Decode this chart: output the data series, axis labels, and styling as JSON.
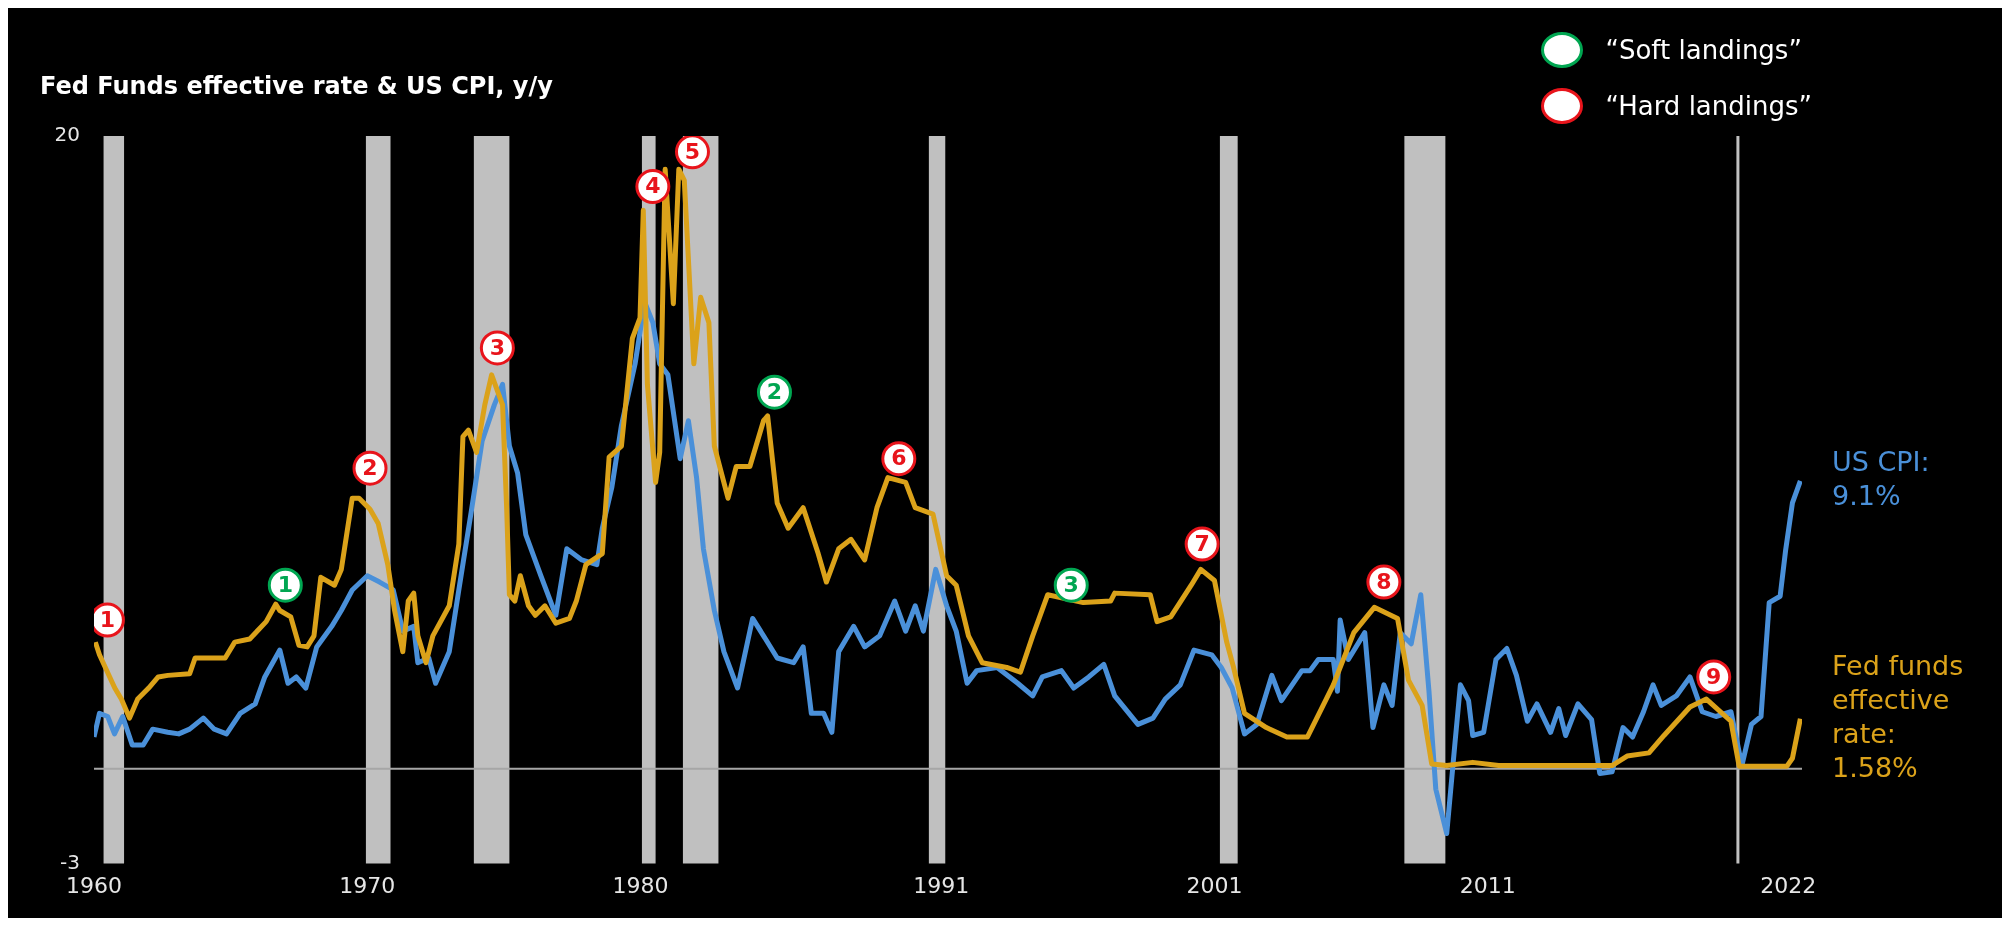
{
  "chart_data": {
    "type": "line",
    "title": "Fed Funds effective rate & US CPI, y/y",
    "xlim": [
      1960,
      2022.5
    ],
    "xticks": [
      1960,
      1970,
      1980,
      1991,
      2001,
      2011,
      2022
    ],
    "ylim": [
      -3,
      20
    ],
    "yticks": [
      -3,
      20
    ],
    "legend": "top right",
    "bands": [
      {
        "axis": "x",
        "from": 1960.35,
        "to": 1961.1,
        "color": "#c0c0c0"
      },
      {
        "axis": "x",
        "from": 1969.95,
        "to": 1970.85,
        "color": "#c0c0c0"
      },
      {
        "axis": "x",
        "from": 1973.9,
        "to": 1975.2,
        "color": "#c0c0c0"
      },
      {
        "axis": "x",
        "from": 1980.05,
        "to": 1980.55,
        "color": "#c0c0c0"
      },
      {
        "axis": "x",
        "from": 1981.55,
        "to": 1982.85,
        "color": "#c0c0c0"
      },
      {
        "axis": "x",
        "from": 1990.55,
        "to": 1991.15,
        "color": "#c0c0c0"
      },
      {
        "axis": "x",
        "from": 2001.2,
        "to": 2001.85,
        "color": "#c0c0c0"
      },
      {
        "axis": "x",
        "from": 2007.95,
        "to": 2009.45,
        "color": "#c0c0c0"
      },
      {
        "axis": "x",
        "from": 2020.1,
        "to": 2020.2,
        "color": "#c0c0c0"
      }
    ],
    "ref_lines": [
      {
        "axis": "y",
        "value": 0,
        "color": "#a6a6a6"
      }
    ],
    "series": [
      {
        "name": "Fed funds effective rate: 1.58%",
        "color": "#dba21a",
        "marker": "none",
        "x": [
          1960.05,
          1960.2,
          1960.76,
          1961.0,
          1961.3,
          1961.6,
          1962.0,
          1962.35,
          1962.7,
          1963.5,
          1963.7,
          1964.8,
          1965.15,
          1965.7,
          1966.3,
          1966.65,
          1966.8,
          1967.2,
          1967.5,
          1967.8,
          1968.05,
          1968.3,
          1968.8,
          1969.05,
          1969.45,
          1969.7,
          1970.1,
          1970.4,
          1970.75,
          1971.0,
          1971.3,
          1971.5,
          1971.7,
          1971.85,
          1972.15,
          1972.4,
          1973.0,
          1973.35,
          1973.5,
          1973.7,
          1974.0,
          1974.3,
          1974.55,
          1974.95,
          1975.1,
          1975.2,
          1975.4,
          1975.6,
          1975.9,
          1976.15,
          1976.5,
          1976.9,
          1977.4,
          1977.65,
          1978.0,
          1978.6,
          1978.85,
          1979.3,
          1979.7,
          1979.98,
          1980.1,
          1980.25,
          1980.55,
          1980.7,
          1980.9,
          1981.2,
          1981.4,
          1981.6,
          1981.95,
          1982.2,
          1982.5,
          1982.7,
          1983.2,
          1983.5,
          1984.0,
          1984.5,
          1984.65,
          1985.0,
          1985.4,
          1985.95,
          1986.5,
          1986.8,
          1987.25,
          1987.7,
          1988.2,
          1988.65,
          1989.05,
          1989.7,
          1990.05,
          1990.7,
          1991.2,
          1991.55,
          1992.0,
          1992.5,
          1993.4,
          1993.9,
          1994.35,
          1994.9,
          1996.2,
          1997.2,
          1997.35,
          1998.65,
          1998.9,
          1999.4,
          2000.15,
          2000.5,
          2001.0,
          2001.45,
          2001.7,
          2002.1,
          2002.9,
          2003.65,
          2004.4,
          2005.35,
          2006.1,
          2006.85,
          2007.7,
          2008.1,
          2008.6,
          2008.95,
          2009.5,
          2010.45,
          2011.4,
          2013.65,
          2015.55,
          2016.1,
          2016.9,
          2017.45,
          2018.4,
          2019.0,
          2019.9,
          2020.2,
          2021.95,
          2022.15,
          2022.44
        ],
        "values": [
          4.0,
          3.6,
          2.55,
          2.2,
          1.6,
          2.2,
          2.55,
          2.9,
          2.95,
          3.0,
          3.5,
          3.5,
          4.0,
          4.1,
          4.65,
          5.2,
          5.0,
          4.8,
          3.9,
          3.85,
          4.2,
          6.05,
          5.8,
          6.3,
          8.55,
          8.55,
          8.2,
          7.75,
          6.45,
          5.0,
          3.7,
          5.3,
          5.55,
          4.2,
          3.35,
          4.2,
          5.15,
          7.1,
          10.5,
          10.7,
          10.0,
          11.5,
          12.45,
          11.5,
          8.25,
          5.5,
          5.3,
          6.1,
          5.15,
          4.85,
          5.15,
          4.6,
          4.75,
          5.3,
          6.45,
          6.8,
          9.85,
          10.2,
          13.6,
          14.25,
          17.65,
          12.15,
          9.05,
          10.0,
          18.95,
          14.7,
          18.95,
          18.6,
          12.8,
          14.9,
          14.1,
          10.2,
          8.55,
          9.55,
          9.55,
          11.0,
          11.15,
          8.4,
          7.6,
          8.25,
          6.8,
          5.9,
          6.95,
          7.25,
          6.6,
          8.25,
          9.2,
          9.05,
          8.25,
          8.05,
          6.1,
          5.8,
          4.2,
          3.35,
          3.2,
          3.05,
          4.2,
          5.5,
          5.25,
          5.3,
          5.55,
          5.5,
          4.65,
          4.8,
          5.8,
          6.3,
          5.95,
          4.0,
          3.2,
          1.75,
          1.3,
          1.0,
          1.0,
          2.65,
          4.3,
          5.1,
          4.75,
          2.8,
          2.0,
          0.15,
          0.1,
          0.2,
          0.1,
          0.1,
          0.1,
          0.4,
          0.5,
          1.05,
          1.95,
          2.2,
          1.5,
          0.08,
          0.08,
          0.33,
          1.58
        ]
      },
      {
        "name": "US CPI: 9.1%",
        "color": "#4a90d9",
        "marker": "none",
        "x": [
          1960.0,
          1960.2,
          1960.5,
          1960.75,
          1961.05,
          1961.4,
          1961.8,
          1962.15,
          1962.7,
          1963.1,
          1963.5,
          1964.0,
          1964.4,
          1964.85,
          1965.35,
          1965.9,
          1966.25,
          1966.8,
          1967.1,
          1967.4,
          1967.75,
          1968.15,
          1968.7,
          1969.05,
          1969.45,
          1970.0,
          1970.45,
          1970.95,
          1971.3,
          1971.7,
          1971.85,
          1972.25,
          1972.5,
          1973.0,
          1973.35,
          1973.8,
          1974.2,
          1974.65,
          1974.95,
          1975.2,
          1975.5,
          1975.8,
          1976.35,
          1976.9,
          1977.3,
          1977.85,
          1978.4,
          1978.6,
          1978.95,
          1979.3,
          1979.8,
          1980.15,
          1980.45,
          1980.7,
          1981.0,
          1981.45,
          1981.75,
          1982.05,
          1982.3,
          1982.7,
          1983.05,
          1983.55,
          1984.1,
          1984.5,
          1985.0,
          1985.6,
          1985.95,
          1986.25,
          1986.7,
          1987.0,
          1987.25,
          1987.8,
          1988.2,
          1988.75,
          1989.3,
          1989.7,
          1990.05,
          1990.35,
          1990.8,
          1991.2,
          1991.55,
          1991.95,
          1992.3,
          1993.05,
          1993.8,
          1994.35,
          1994.7,
          1995.4,
          1995.85,
          1996.4,
          1996.95,
          1997.35,
          1998.2,
          1998.75,
          1999.2,
          1999.75,
          2000.25,
          2000.9,
          2001.25,
          2001.65,
          2002.1,
          2002.55,
          2003.1,
          2003.45,
          2004.2,
          2004.5,
          2004.8,
          2005.35,
          2005.5,
          2005.6,
          2005.9,
          2006.5,
          2006.8,
          2007.2,
          2007.5,
          2007.8,
          2008.2,
          2008.55,
          2008.85,
          2009.1,
          2009.5,
          2009.8,
          2010.0,
          2010.3,
          2010.45,
          2010.85,
          2011.3,
          2011.7,
          2012.05,
          2012.45,
          2012.8,
          2013.3,
          2013.6,
          2013.85,
          2014.3,
          2014.8,
          2015.1,
          2015.55,
          2015.95,
          2016.3,
          2016.7,
          2017.05,
          2017.35,
          2017.9,
          2018.4,
          2018.85,
          2019.35,
          2019.9,
          2020.3,
          2020.65,
          2021.0,
          2021.3,
          2021.7,
          2021.9,
          2022.15,
          2022.44
        ],
        "values": [
          1.0,
          1.75,
          1.65,
          1.1,
          1.65,
          0.75,
          0.75,
          1.25,
          1.15,
          1.1,
          1.25,
          1.6,
          1.25,
          1.1,
          1.75,
          2.05,
          2.9,
          3.75,
          2.7,
          2.9,
          2.55,
          3.85,
          4.5,
          5.0,
          5.65,
          6.1,
          5.9,
          5.65,
          4.35,
          4.5,
          3.35,
          3.5,
          2.7,
          3.7,
          5.65,
          8.1,
          10.35,
          11.5,
          12.15,
          10.2,
          9.35,
          7.4,
          6.1,
          4.85,
          6.95,
          6.6,
          6.45,
          7.6,
          8.9,
          10.85,
          12.8,
          14.75,
          14.1,
          12.8,
          12.45,
          9.8,
          11.0,
          9.2,
          6.95,
          5.0,
          3.7,
          2.55,
          4.75,
          4.2,
          3.5,
          3.35,
          3.85,
          1.75,
          1.75,
          1.15,
          3.7,
          4.5,
          3.85,
          4.2,
          5.3,
          4.35,
          5.15,
          4.35,
          6.3,
          5.15,
          4.35,
          2.7,
          3.1,
          3.2,
          2.7,
          2.3,
          2.9,
          3.1,
          2.55,
          2.9,
          3.3,
          2.3,
          1.4,
          1.6,
          2.2,
          2.65,
          3.75,
          3.6,
          3.2,
          2.55,
          1.1,
          1.4,
          2.95,
          2.15,
          3.1,
          3.1,
          3.45,
          3.45,
          2.45,
          4.7,
          3.45,
          4.3,
          1.3,
          2.65,
          2.0,
          4.3,
          3.95,
          5.5,
          2.45,
          -0.65,
          -2.05,
          0.8,
          2.65,
          2.15,
          1.05,
          1.15,
          3.45,
          3.8,
          2.95,
          1.5,
          2.05,
          1.15,
          1.9,
          1.05,
          2.05,
          1.55,
          -0.15,
          -0.1,
          1.3,
          1.0,
          1.8,
          2.65,
          2.0,
          2.3,
          2.9,
          1.8,
          1.65,
          1.8,
          0.1,
          1.4,
          1.65,
          5.25,
          5.45,
          6.9,
          8.4,
          9.1
        ]
      },
      {
        "name": "“Soft landings”",
        "type": "scatter",
        "color": "#00a651",
        "marker": "circle",
        "x": [
          1967.0,
          1984.9,
          1995.76
        ],
        "values": [
          5.8,
          11.9,
          5.8
        ]
      },
      {
        "name": "“Hard landings”",
        "type": "scatter",
        "color": "#e8141b",
        "marker": "circle",
        "x": [
          1960.49,
          1970.1,
          1974.76,
          1980.45,
          1981.9,
          1989.45,
          2000.55,
          2007.2,
          2019.27
        ],
        "values": [
          4.7,
          9.5,
          13.3,
          18.4,
          19.5,
          9.8,
          7.1,
          5.9,
          2.9
        ]
      }
    ],
    "annotations": [
      {
        "text": "1",
        "x": 1967.0,
        "y": 5.8
      },
      {
        "text": "2",
        "x": 1984.9,
        "y": 11.9
      },
      {
        "text": "3",
        "x": 1995.76,
        "y": 5.8
      },
      {
        "text": "1",
        "x": 1960.49,
        "y": 4.7
      },
      {
        "text": "2",
        "x": 1970.1,
        "y": 9.5
      },
      {
        "text": "3",
        "x": 1974.76,
        "y": 13.3
      },
      {
        "text": "4",
        "x": 1980.45,
        "y": 18.4
      },
      {
        "text": "5",
        "x": 1981.9,
        "y": 19.5
      },
      {
        "text": "6",
        "x": 1989.45,
        "y": 9.8
      },
      {
        "text": "7",
        "x": 2000.55,
        "y": 7.1
      },
      {
        "text": "8",
        "x": 2007.2,
        "y": 5.9
      },
      {
        "text": "9",
        "x": 2019.27,
        "y": 2.9
      }
    ]
  }
}
